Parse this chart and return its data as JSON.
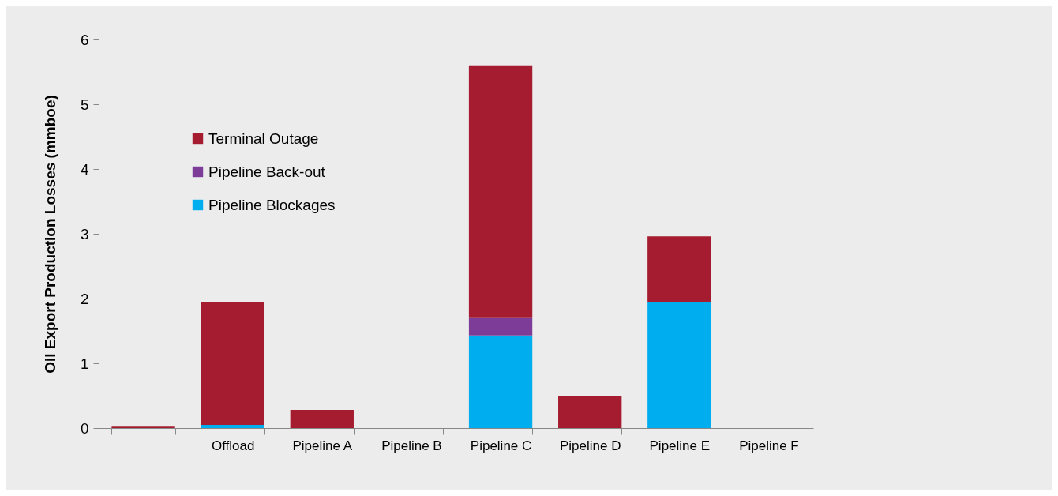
{
  "chart_data": {
    "type": "bar",
    "ylabel": "Oil Export Production Losses (mmboe)",
    "categories": [
      null,
      "Offload",
      "Pipeline A",
      "Pipeline B",
      "Pipeline C",
      "Pipeline D",
      "Pipeline E",
      "Pipeline F"
    ],
    "stacked": true,
    "legend": "top left",
    "grid": false,
    "ylim": [
      0,
      6
    ],
    "yticks": [
      0,
      1,
      2,
      3,
      4,
      5,
      6
    ],
    "series": [
      {
        "name": "Pipeline Blockages",
        "color": "#00aeef",
        "values": [
          null,
          0.05,
          null,
          null,
          1.43,
          null,
          1.94,
          null
        ]
      },
      {
        "name": "Pipeline Back-out",
        "color": "#7d3c98",
        "values": [
          null,
          null,
          null,
          null,
          0.28,
          null,
          null,
          null
        ]
      },
      {
        "name": "Terminal Outage",
        "color": "#a51b2f",
        "values": [
          0.02,
          1.89,
          0.28,
          null,
          3.89,
          0.5,
          1.02,
          null
        ]
      }
    ]
  }
}
